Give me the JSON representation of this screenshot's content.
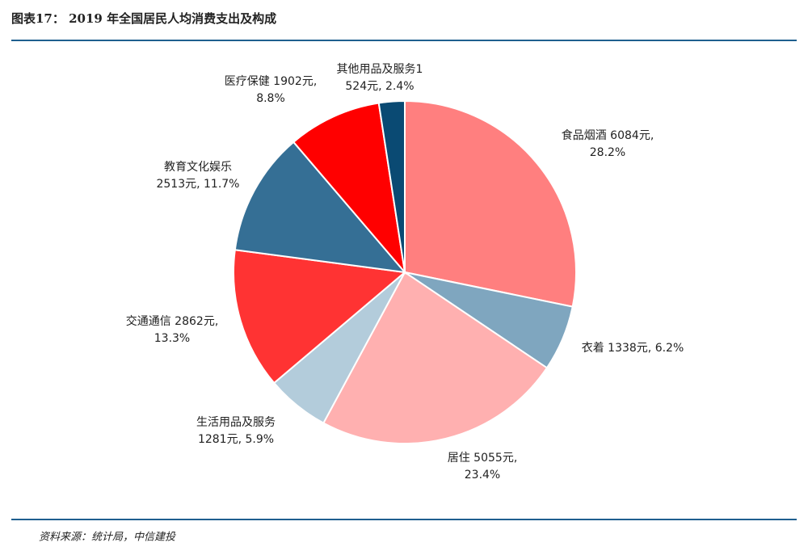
{
  "chart_data": {
    "type": "pie",
    "title": "图表17： 2019 年全国居民人均消费支出及构成",
    "values": [
      6084,
      1338,
      5055,
      1281,
      2862,
      2513,
      1902,
      524
    ],
    "value_labels": [
      [
        "食品烟酒 6084元,",
        "28.2%"
      ],
      [
        "衣着 1338元, 6.2%"
      ],
      [
        "居住 5055元,",
        "23.4%"
      ],
      [
        "生活用品及服务",
        "1281元, 5.9%"
      ],
      [
        "交通通信 2862元,",
        "13.3%"
      ],
      [
        "教育文化娱乐",
        "2513元, 11.7%"
      ],
      [
        "医疗保健 1902元,",
        "8.8%"
      ],
      [
        "其他用品及服务1",
        "524元, 2.4%"
      ]
    ],
    "colors": [
      "#FF7F7F",
      "#7FA6BF",
      "#FFB0B0",
      "#B3CCDB",
      "#FF3333",
      "#356F95",
      "#FF0000",
      "#0A4A73"
    ],
    "source": "资料来源：统计局，中信建投"
  }
}
